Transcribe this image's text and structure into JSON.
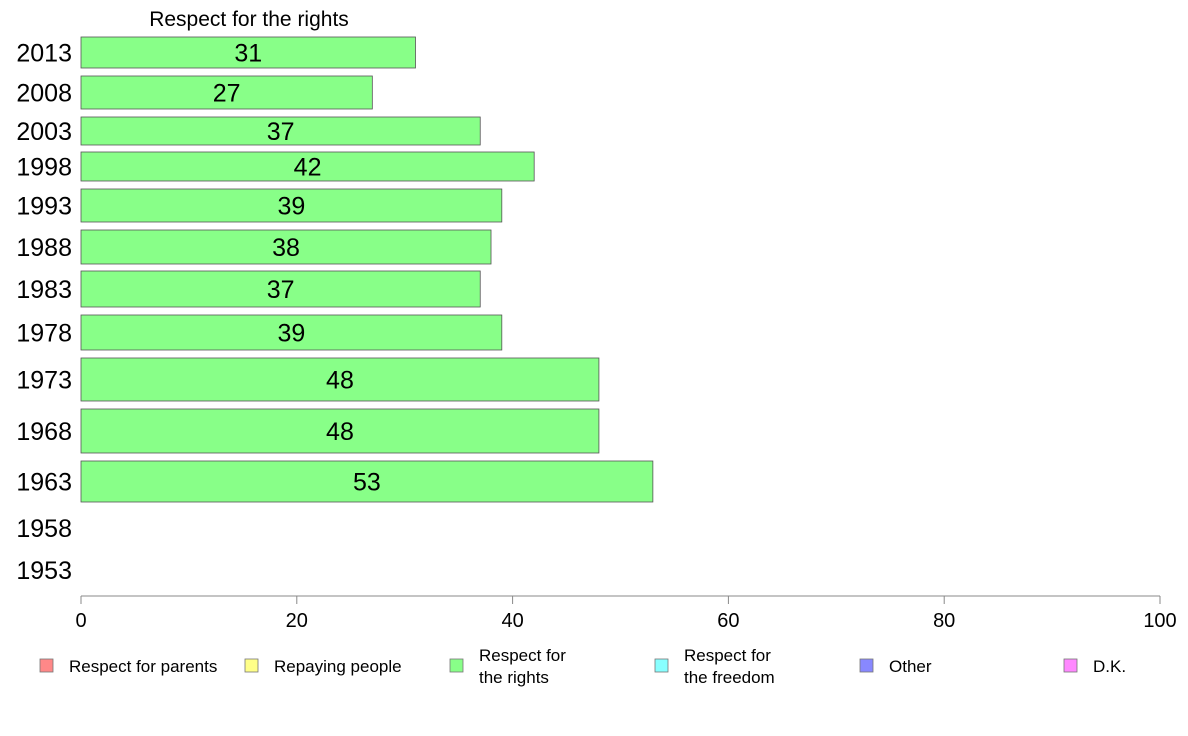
{
  "chart_data": {
    "type": "bar",
    "orientation": "horizontal",
    "title": "Respect for the rights",
    "categories": [
      "2013",
      "2008",
      "2003",
      "1998",
      "1993",
      "1988",
      "1983",
      "1978",
      "1973",
      "1968",
      "1963",
      "1958",
      "1953"
    ],
    "series": [
      {
        "name": "Respect for the rights",
        "color": "#88ff88",
        "values": [
          31,
          27,
          37,
          42,
          39,
          38,
          37,
          39,
          48,
          48,
          53,
          null,
          null
        ]
      }
    ],
    "data_labels": [
      "31",
      "27",
      "37",
      "42",
      "39",
      "38",
      "37",
      "39",
      "48",
      "48",
      "53",
      "",
      ""
    ],
    "xlim": [
      0,
      100
    ],
    "xticks": [
      "0",
      "20",
      "40",
      "60",
      "80",
      "100"
    ],
    "grid": false,
    "legend": {
      "position": "bottom",
      "entries": [
        {
          "label": [
            "Respect for parents"
          ],
          "color": "#ff8888"
        },
        {
          "label": [
            "Repaying people"
          ],
          "color": "#ffff88"
        },
        {
          "label": [
            "Respect for",
            "the rights"
          ],
          "color": "#88ff88"
        },
        {
          "label": [
            "Respect for",
            "the freedom"
          ],
          "color": "#88ffff"
        },
        {
          "label": [
            "Other"
          ],
          "color": "#8888ff"
        },
        {
          "label": [
            "D.K."
          ],
          "color": "#ff88ff"
        }
      ]
    }
  }
}
